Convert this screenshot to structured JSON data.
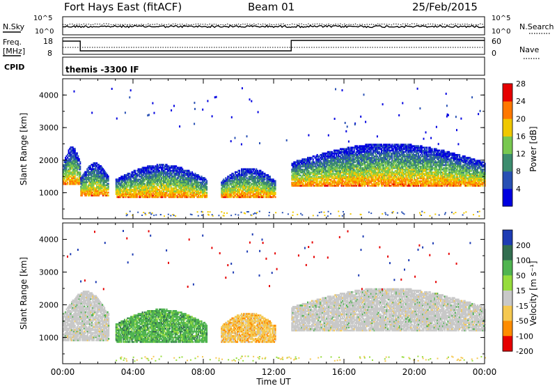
{
  "header": {
    "station": "Fort Hays East (fitACF)",
    "beam": "Beam 01",
    "date": "25/Feb/2015"
  },
  "strip_labels": {
    "nsky": "N.Sky",
    "nsearch": "N.Search",
    "freq": "Freq.",
    "freq_unit": "[MHz]",
    "nave": "Nave",
    "cpid": "CPID",
    "cpid_value": "themis -3300 IF",
    "ticks_left_noise": [
      "10^5",
      "10^0"
    ],
    "ticks_right_noise": [
      "10^5",
      "10^0"
    ],
    "ticks_left_freq": [
      "18",
      "8"
    ],
    "ticks_right_nave": [
      "60",
      "0"
    ]
  },
  "chart_data": [
    {
      "type": "heatmap",
      "panel": "power",
      "ylabel": "Slant Range [km]",
      "yticks": [
        "1000",
        "2000",
        "3000",
        "4000"
      ],
      "ylim": [
        200,
        4500
      ],
      "xlim": [
        0,
        24
      ],
      "colorbar": {
        "label": "Power [dB]",
        "ticks": [
          "4",
          "8",
          "12",
          "16",
          "20",
          "24",
          "28"
        ],
        "colors": [
          "#0000e0",
          "#2850b4",
          "#3c8c6e",
          "#78c850",
          "#f0c800",
          "#ff7800",
          "#e60000"
        ]
      },
      "regions": [
        {
          "x": [
            0.0,
            1.0
          ],
          "range_km": [
            1250,
            2400
          ],
          "level": 3
        },
        {
          "x": [
            1.0,
            2.6
          ],
          "range_km": [
            900,
            1900
          ],
          "level": 3
        },
        {
          "x": [
            3.0,
            8.2
          ],
          "range_km": [
            850,
            1850
          ],
          "level": 4
        },
        {
          "x": [
            9.0,
            12.1
          ],
          "range_km": [
            850,
            1750
          ],
          "level": 4
        },
        {
          "x": [
            13.0,
            24.0
          ],
          "range_km": [
            1200,
            2500
          ],
          "level": 4
        }
      ]
    },
    {
      "type": "heatmap",
      "panel": "velocity",
      "ylabel": "Slant Range [km]",
      "yticks": [
        "1000",
        "2000",
        "3000",
        "4000"
      ],
      "ylim": [
        200,
        4500
      ],
      "xlim": [
        0,
        24
      ],
      "xlabel": "Time UT",
      "xticks": [
        "00:00",
        "04:00",
        "08:00",
        "12:00",
        "16:00",
        "20:00",
        "00:00"
      ],
      "colorbar": {
        "label": "Velocity [m s⁻¹]",
        "ticks": [
          "200",
          "100",
          "50",
          "15",
          "-15",
          "-50",
          "-100",
          "-200"
        ],
        "colors": [
          "#1e3cb4",
          "#326e50",
          "#50b450",
          "#96dc3c",
          "#c8c8c8",
          "#f5c850",
          "#ff8c00",
          "#e60000"
        ]
      },
      "regions": [
        {
          "x": [
            0.0,
            2.6
          ],
          "range_km": [
            900,
            2400
          ],
          "velocity": 0
        },
        {
          "x": [
            3.0,
            8.2
          ],
          "range_km": [
            850,
            1850
          ],
          "velocity": 60
        },
        {
          "x": [
            9.0,
            12.1
          ],
          "range_km": [
            850,
            1750
          ],
          "velocity": -40
        },
        {
          "x": [
            13.0,
            24.0
          ],
          "range_km": [
            1200,
            2500
          ],
          "velocity": 0
        }
      ]
    }
  ]
}
